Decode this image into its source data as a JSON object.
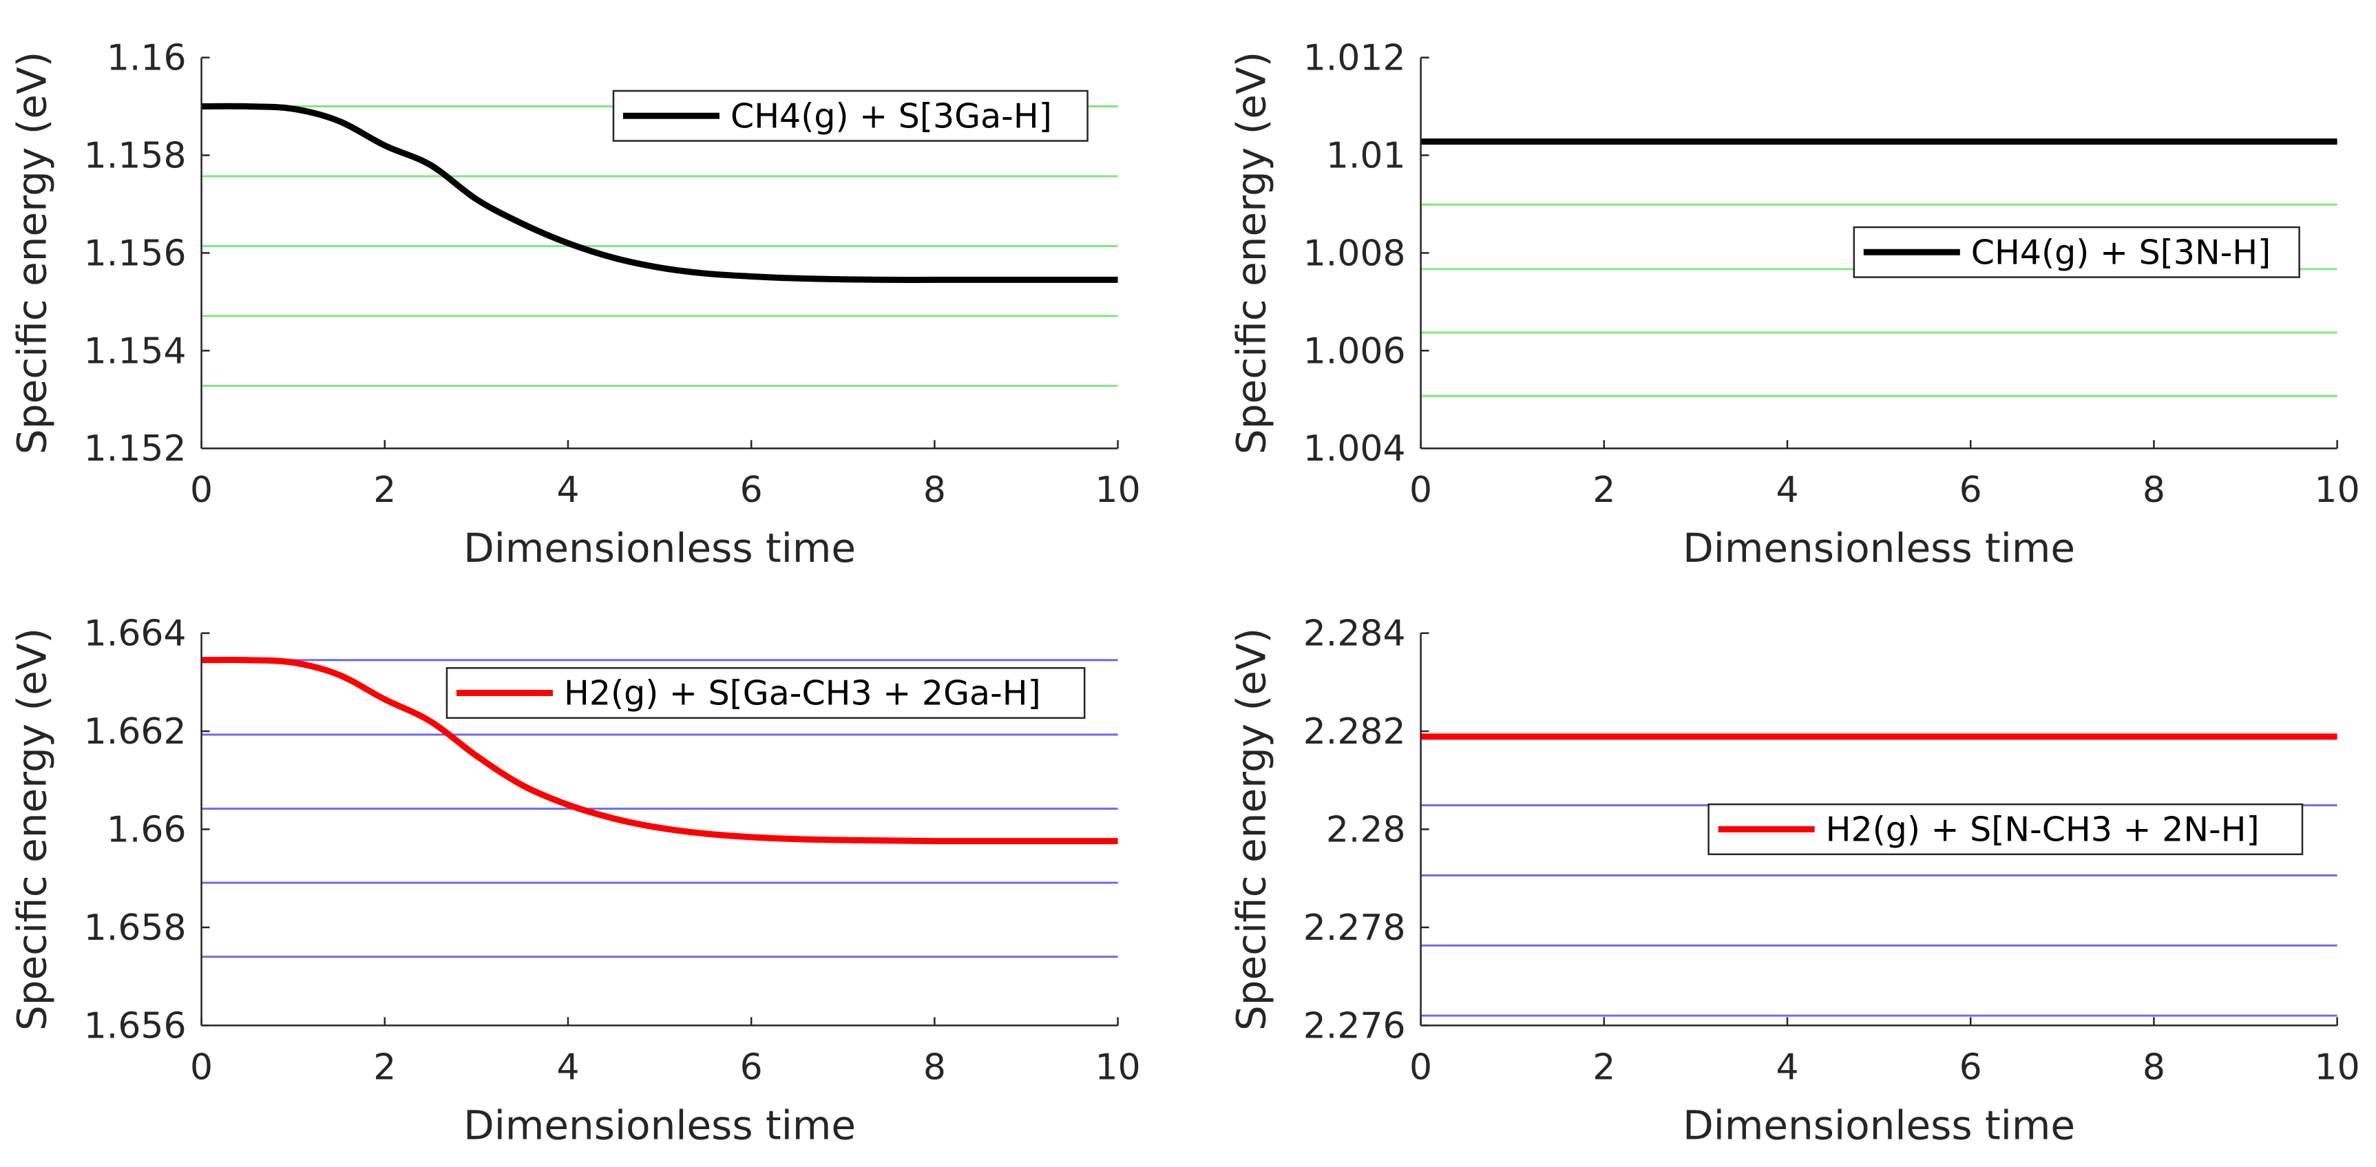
{
  "chart_data": [
    {
      "type": "line",
      "title": "",
      "xlabel": "Dimensionless time",
      "ylabel": "Specific energy (eV)",
      "xlim": [
        0,
        10
      ],
      "ylim": [
        1.152,
        1.16
      ],
      "xticks": [
        "0",
        "2",
        "4",
        "6",
        "8",
        "10"
      ],
      "yticks": [
        "1.152",
        "1.154",
        "1.156",
        "1.158",
        "1.16"
      ],
      "reference_levels": [
        1.159,
        1.15757,
        1.15614,
        1.15471,
        1.15328
      ],
      "reference_color": "#7ee87e",
      "series": [
        {
          "name": "CH4(g) + S[3Ga-H]",
          "color": "#000000",
          "x": [
            0,
            0.5,
            1,
            1.5,
            2,
            2.5,
            3,
            3.5,
            4,
            4.5,
            5,
            5.5,
            6,
            6.5,
            7,
            7.5,
            8,
            8.5,
            9,
            9.5,
            10
          ],
          "values": [
            1.159,
            1.159,
            1.15895,
            1.1587,
            1.1582,
            1.1578,
            1.1571,
            1.1566,
            1.1562,
            1.1559,
            1.1557,
            1.15558,
            1.15552,
            1.15548,
            1.15546,
            1.15545,
            1.15545,
            1.15545,
            1.15545,
            1.15545,
            1.15545
          ]
        }
      ]
    },
    {
      "type": "line",
      "title": "",
      "xlabel": "Dimensionless time",
      "ylabel": "Specific energy (eV)",
      "xlim": [
        0,
        10
      ],
      "ylim": [
        1.004,
        1.012
      ],
      "xticks": [
        "0",
        "2",
        "4",
        "6",
        "8",
        "10"
      ],
      "yticks": [
        "1.004",
        "1.006",
        "1.008",
        "1.01",
        "1.012"
      ],
      "reference_levels": [
        1.00899,
        1.00767,
        1.00637,
        1.00507
      ],
      "reference_color": "#7ee87e",
      "series": [
        {
          "name": "CH4(g) + S[3N-H]",
          "color": "#000000",
          "x": [
            0,
            10
          ],
          "values": [
            1.01028,
            1.01028
          ]
        }
      ]
    },
    {
      "type": "line",
      "title": "",
      "xlabel": "Dimensionless time",
      "ylabel": "Specific energy (eV)",
      "xlim": [
        0,
        10
      ],
      "ylim": [
        1.656,
        1.664
      ],
      "xticks": [
        "0",
        "2",
        "4",
        "6",
        "8",
        "10"
      ],
      "yticks": [
        "1.656",
        "1.658",
        "1.66",
        "1.662",
        "1.664"
      ],
      "reference_levels": [
        1.66345,
        1.66193,
        1.66042,
        1.65891,
        1.6574
      ],
      "reference_color": "#6b6bf0",
      "series": [
        {
          "name": "H2(g) + S[Ga-CH3 + 2Ga-H]",
          "color": "#ff0000",
          "x": [
            0,
            0.5,
            1,
            1.5,
            2,
            2.5,
            3,
            3.5,
            4,
            4.5,
            5,
            5.5,
            6,
            6.5,
            7,
            7.5,
            8,
            8.5,
            9,
            9.5,
            10
          ],
          "values": [
            1.66345,
            1.66345,
            1.6634,
            1.66315,
            1.66265,
            1.6622,
            1.6615,
            1.6609,
            1.6605,
            1.66022,
            1.66003,
            1.65991,
            1.65984,
            1.6598,
            1.65978,
            1.65977,
            1.65976,
            1.65976,
            1.65976,
            1.65976,
            1.65976
          ]
        }
      ]
    },
    {
      "type": "line",
      "title": "",
      "xlabel": "Dimensionless time",
      "ylabel": "Specific energy (eV)",
      "xlim": [
        0,
        10
      ],
      "ylim": [
        2.276,
        2.284
      ],
      "xticks": [
        "0",
        "2",
        "4",
        "6",
        "8",
        "10"
      ],
      "yticks": [
        "2.276",
        "2.278",
        "2.28",
        "2.282",
        "2.284"
      ],
      "reference_levels": [
        2.28049,
        2.27906,
        2.27763,
        2.2762
      ],
      "reference_color": "#6b6bf0",
      "series": [
        {
          "name": "H2(g) + S[N-CH3 + 2N-H]",
          "color": "#ff0000",
          "x": [
            0,
            10
          ],
          "values": [
            2.28189,
            2.28189
          ]
        }
      ]
    }
  ]
}
